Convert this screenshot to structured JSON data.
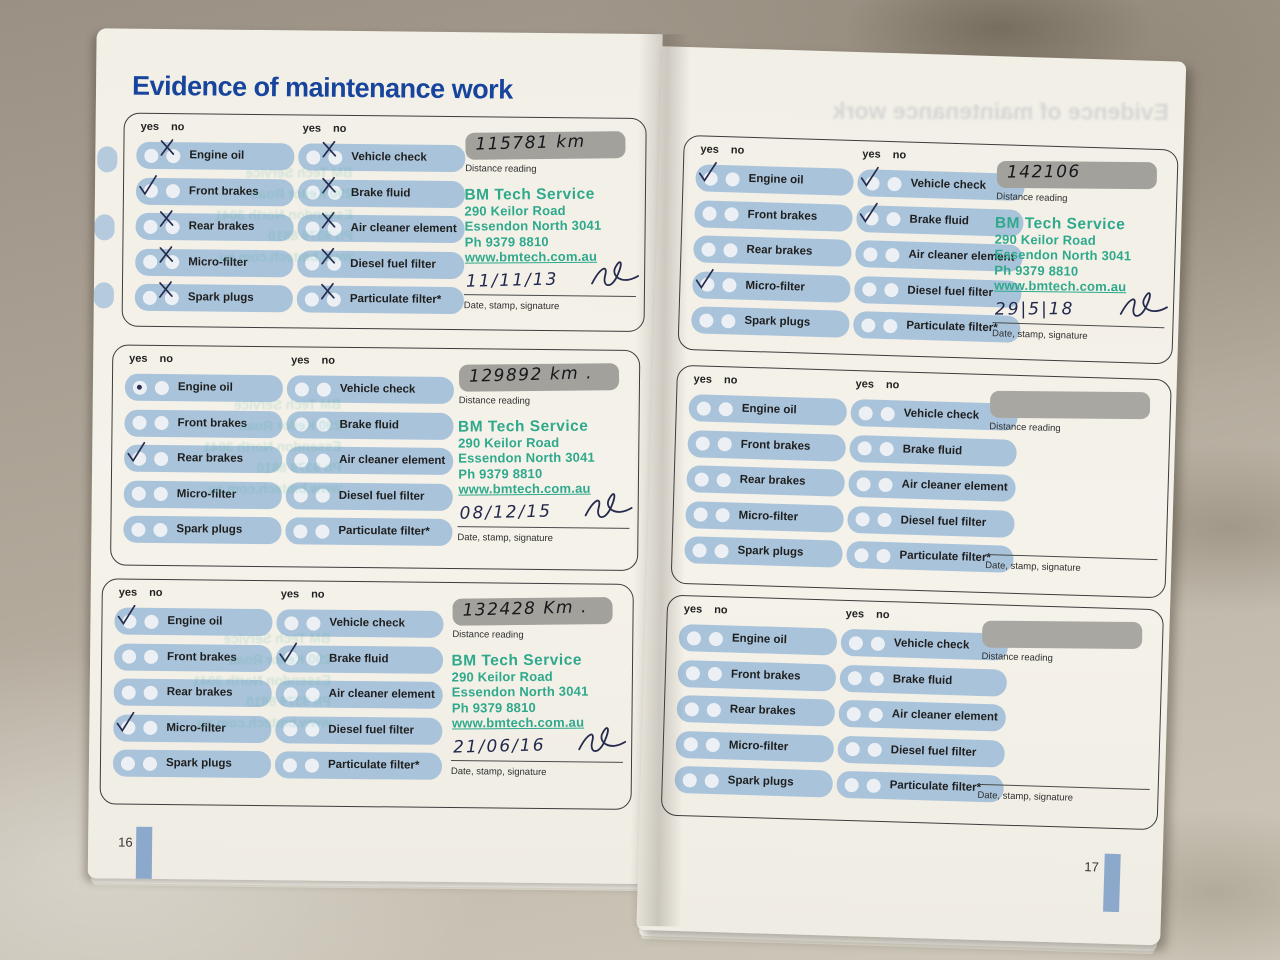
{
  "header": {
    "title": "Evidence of maintenance work"
  },
  "labels": {
    "yes": "yes",
    "no": "no",
    "distance": "Distance reading",
    "date_stamp": "Date, stamp, signature"
  },
  "stamp_lines": [
    "BM Tech Service",
    "290 Keilor Road",
    "Essendon North 3041",
    "Ph 9379 8810",
    "www.bmtech.com.au"
  ],
  "pages": {
    "left_number": "16",
    "right_number": "17"
  },
  "colors": {
    "title_blue": "#17449c",
    "pill_blue": "#a9c3da",
    "stamp_teal": "#2fa98c",
    "ink_blue": "#23284f",
    "tab_blue": "#8ca9cc",
    "distance_box_grey": "#a3a19b"
  },
  "blocks": [
    {
      "distance": "115781 km",
      "date": "11/11/13",
      "stamped": true,
      "bleed": true,
      "left_items": [
        {
          "label": "Engine oil",
          "mark": "x",
          "on": "no"
        },
        {
          "label": "Front brakes",
          "mark": "check",
          "on": "yes"
        },
        {
          "label": "Rear brakes",
          "mark": "x",
          "on": "no"
        },
        {
          "label": "Micro-filter",
          "mark": "x",
          "on": "no"
        },
        {
          "label": "Spark plugs",
          "mark": "x",
          "on": "no"
        }
      ],
      "right_items": [
        {
          "label": "Vehicle check",
          "mark": "x",
          "on": "no"
        },
        {
          "label": "Brake fluid",
          "mark": "x",
          "on": "no"
        },
        {
          "label": "Air cleaner element",
          "mark": "x",
          "on": "no"
        },
        {
          "label": "Diesel fuel filter",
          "mark": "x",
          "on": "no"
        },
        {
          "label": "Particulate filter*",
          "mark": "x",
          "on": "no"
        }
      ]
    },
    {
      "distance": "129892 km .",
      "date": "08/12/15",
      "stamped": true,
      "bleed": true,
      "left_items": [
        {
          "label": "Engine oil",
          "mark": "dot",
          "on": "yes"
        },
        {
          "label": "Front brakes",
          "mark": null,
          "on": null
        },
        {
          "label": "Rear brakes",
          "mark": "check",
          "on": "yes"
        },
        {
          "label": "Micro-filter",
          "mark": null,
          "on": null
        },
        {
          "label": "Spark plugs",
          "mark": null,
          "on": null
        }
      ],
      "right_items": [
        {
          "label": "Vehicle check",
          "mark": null,
          "on": null
        },
        {
          "label": "Brake fluid",
          "mark": null,
          "on": null
        },
        {
          "label": "Air cleaner element",
          "mark": null,
          "on": null
        },
        {
          "label": "Diesel fuel filter",
          "mark": null,
          "on": null
        },
        {
          "label": "Particulate filter*",
          "mark": null,
          "on": null
        }
      ]
    },
    {
      "distance": "132428 Km .",
      "date": "21/06/16",
      "stamped": true,
      "bleed": true,
      "left_items": [
        {
          "label": "Engine oil",
          "mark": "check",
          "on": "yes"
        },
        {
          "label": "Front brakes",
          "mark": null,
          "on": null
        },
        {
          "label": "Rear brakes",
          "mark": null,
          "on": null
        },
        {
          "label": "Micro-filter",
          "mark": "check",
          "on": "yes"
        },
        {
          "label": "Spark plugs",
          "mark": null,
          "on": null
        }
      ],
      "right_items": [
        {
          "label": "Vehicle check",
          "mark": null,
          "on": null
        },
        {
          "label": "Brake fluid",
          "mark": "check",
          "on": "yes"
        },
        {
          "label": "Air cleaner element",
          "mark": null,
          "on": null
        },
        {
          "label": "Diesel fuel filter",
          "mark": null,
          "on": null
        },
        {
          "label": "Particulate filter*",
          "mark": null,
          "on": null
        }
      ]
    },
    {
      "distance": "142106",
      "date": "29|5|18",
      "stamped": true,
      "bleed": false,
      "left_items": [
        {
          "label": "Engine oil",
          "mark": "check",
          "on": "yes"
        },
        {
          "label": "Front brakes",
          "mark": null,
          "on": null
        },
        {
          "label": "Rear brakes",
          "mark": null,
          "on": null
        },
        {
          "label": "Micro-filter",
          "mark": "check",
          "on": "yes"
        },
        {
          "label": "Spark plugs",
          "mark": null,
          "on": null
        }
      ],
      "right_items": [
        {
          "label": "Vehicle check",
          "mark": "check",
          "on": "yes"
        },
        {
          "label": "Brake fluid",
          "mark": "check",
          "on": "yes"
        },
        {
          "label": "Air cleaner element",
          "mark": null,
          "on": null
        },
        {
          "label": "Diesel fuel filter",
          "mark": null,
          "on": null
        },
        {
          "label": "Particulate filter*",
          "mark": null,
          "on": null
        }
      ]
    },
    {
      "distance": "",
      "date": "",
      "stamped": false,
      "bleed": false,
      "left_items": [
        {
          "label": "Engine oil",
          "mark": null,
          "on": null
        },
        {
          "label": "Front brakes",
          "mark": null,
          "on": null
        },
        {
          "label": "Rear brakes",
          "mark": null,
          "on": null
        },
        {
          "label": "Micro-filter",
          "mark": null,
          "on": null
        },
        {
          "label": "Spark plugs",
          "mark": null,
          "on": null
        }
      ],
      "right_items": [
        {
          "label": "Vehicle check",
          "mark": null,
          "on": null
        },
        {
          "label": "Brake fluid",
          "mark": null,
          "on": null
        },
        {
          "label": "Air cleaner element",
          "mark": null,
          "on": null
        },
        {
          "label": "Diesel fuel filter",
          "mark": null,
          "on": null
        },
        {
          "label": "Particulate filter*",
          "mark": null,
          "on": null
        }
      ]
    },
    {
      "distance": "",
      "date": "",
      "stamped": false,
      "bleed": false,
      "left_items": [
        {
          "label": "Engine oil",
          "mark": null,
          "on": null
        },
        {
          "label": "Front brakes",
          "mark": null,
          "on": null
        },
        {
          "label": "Rear brakes",
          "mark": null,
          "on": null
        },
        {
          "label": "Micro-filter",
          "mark": null,
          "on": null
        },
        {
          "label": "Spark plugs",
          "mark": null,
          "on": null
        }
      ],
      "right_items": [
        {
          "label": "Vehicle check",
          "mark": null,
          "on": null
        },
        {
          "label": "Brake fluid",
          "mark": null,
          "on": null
        },
        {
          "label": "Air cleaner element",
          "mark": null,
          "on": null
        },
        {
          "label": "Diesel fuel filter",
          "mark": null,
          "on": null
        },
        {
          "label": "Particulate filter*",
          "mark": null,
          "on": null
        }
      ]
    }
  ]
}
